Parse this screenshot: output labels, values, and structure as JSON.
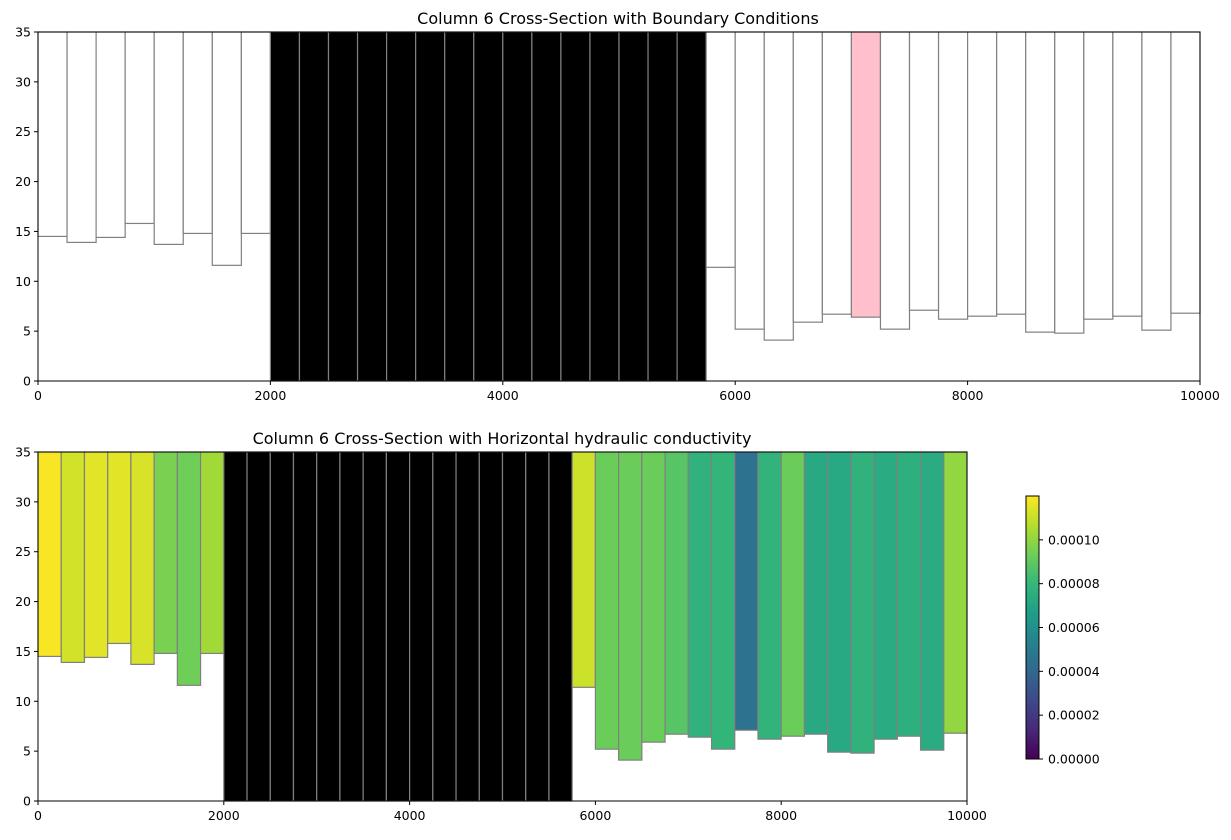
{
  "chart_data": [
    {
      "type": "heatmap",
      "title": "Column 6 Cross-Section with Boundary Conditions",
      "xlabel": "",
      "ylabel": "",
      "xlim": [
        0,
        10000
      ],
      "ylim": [
        0,
        35
      ],
      "xticks": [
        "0",
        "2000",
        "4000",
        "6000",
        "8000",
        "10000"
      ],
      "yticks": [
        "0",
        "5",
        "10",
        "15",
        "20",
        "25",
        "30",
        "35"
      ],
      "cell_width": 250,
      "top": 35,
      "bottoms": [
        14.5,
        13.9,
        14.4,
        15.8,
        13.7,
        14.8,
        11.6,
        14.8,
        0,
        0,
        0,
        0,
        0,
        0,
        0,
        0,
        0,
        0,
        0,
        0,
        0,
        0,
        0,
        11.4,
        5.2,
        4.1,
        5.9,
        6.7,
        6.4,
        5.2,
        7.1,
        6.2,
        6.5,
        6.7,
        4.9,
        4.8,
        6.2,
        6.5,
        5.1,
        6.8
      ],
      "cell_types": [
        "active",
        "active",
        "active",
        "active",
        "active",
        "active",
        "active",
        "active",
        "inactive",
        "inactive",
        "inactive",
        "inactive",
        "inactive",
        "inactive",
        "inactive",
        "inactive",
        "inactive",
        "inactive",
        "inactive",
        "inactive",
        "inactive",
        "inactive",
        "inactive",
        "active",
        "active",
        "active",
        "active",
        "active",
        "river",
        "active",
        "active",
        "active",
        "active",
        "active",
        "active",
        "active",
        "active",
        "active",
        "active",
        "active"
      ],
      "colors": {
        "active": "#ffffff",
        "inactive": "#000000",
        "river": "#ffc0cb",
        "edge": "#808080"
      },
      "grid": false
    },
    {
      "type": "heatmap",
      "title": "Column 6 Cross-Section with Horizontal hydraulic conductivity",
      "xlabel": "",
      "ylabel": "",
      "xlim": [
        0,
        10000
      ],
      "ylim": [
        0,
        35
      ],
      "xticks": [
        "0",
        "2000",
        "4000",
        "6000",
        "8000",
        "10000"
      ],
      "yticks": [
        "0",
        "5",
        "10",
        "15",
        "20",
        "25",
        "30",
        "35"
      ],
      "cell_width": 250,
      "top": 35,
      "bottoms": [
        14.5,
        13.9,
        14.4,
        15.8,
        13.7,
        14.8,
        11.6,
        14.8,
        0,
        0,
        0,
        0,
        0,
        0,
        0,
        0,
        0,
        0,
        0,
        0,
        0,
        0,
        0,
        11.4,
        5.2,
        4.1,
        5.9,
        6.7,
        6.4,
        5.2,
        7.1,
        6.2,
        6.5,
        6.7,
        4.9,
        4.8,
        6.2,
        6.5,
        5.1,
        6.8
      ],
      "values": [
        0.000119,
        0.000112,
        0.000115,
        0.000115,
        0.000113,
        9.55e-05,
        9.35e-05,
        0.000103,
        null,
        null,
        null,
        null,
        null,
        null,
        null,
        null,
        null,
        null,
        null,
        null,
        null,
        null,
        null,
        0.000111,
        9.25e-05,
        9.25e-05,
        9.25e-05,
        8.8e-05,
        7.75e-05,
        7.9e-05,
        4.5e-05,
        7.8e-05,
        9.25e-05,
        7.2e-05,
        7.2e-05,
        7.75e-05,
        7.35e-05,
        7.55e-05,
        7.35e-05,
        0.0001
      ],
      "inactive_color": "#000000",
      "edge_color": "#808080",
      "colorbar": {
        "colormap": "viridis",
        "min": 0,
        "max": 0.00012,
        "ticks": [
          0,
          2e-05,
          4e-05,
          6e-05,
          8e-05,
          0.0001
        ],
        "tick_labels": [
          "0.00000",
          "0.00002",
          "0.00004",
          "0.00006",
          "0.00008",
          "0.00010"
        ],
        "placement": "right"
      },
      "grid": false
    }
  ]
}
